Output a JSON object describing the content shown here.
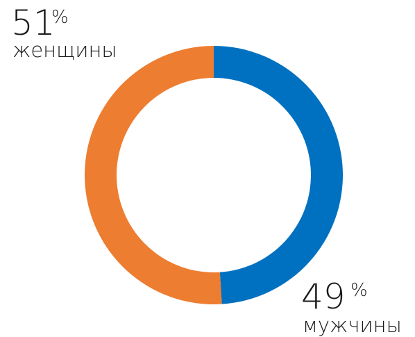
{
  "chart_data": {
    "type": "donut",
    "categories": [
      "мужчины",
      "женщины"
    ],
    "values": [
      49,
      51
    ],
    "value_labels": [
      "49",
      "51"
    ],
    "unit": "%",
    "colors": [
      "#0070c0",
      "#ed7d31"
    ]
  }
}
